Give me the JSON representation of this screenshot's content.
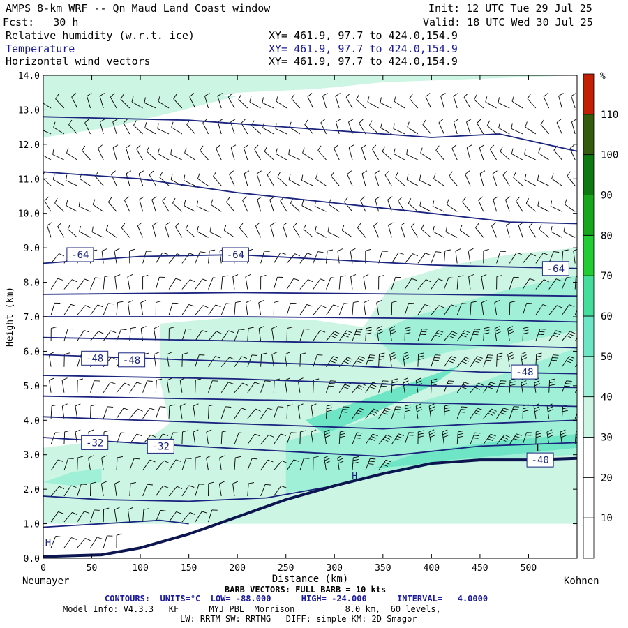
{
  "header": {
    "title": "AMPS 8-km WRF -- Qn Maud Land Coast window",
    "init": "Init: 12 UTC Tue 29 Jul 25",
    "fcst": "Fcst:   30 h",
    "valid": "Valid: 18 UTC Wed 30 Jul 25",
    "field1": "Relative humidity (w.r.t. ice)",
    "field2": "Temperature",
    "field3": "Horizontal wind vectors",
    "xy": "XY= 461.9, 97.7 to 424.0,154.9"
  },
  "footer": {
    "barb": "BARB VECTORS: FULL BARB = 10 kts",
    "contours": "CONTOURS:  UNITS=°C  LOW= -88.000      HIGH= -24.000      INTERVAL=   4.0000",
    "model1": "Model Info: V4.3.3   KF      MYJ PBL  Morrison          8.0 km,  60 levels,",
    "model2": "LW: RRTM SW: RRTMG   DIFF: simple KM: 2D Smagor"
  },
  "chart_data": {
    "type": "cross-section",
    "xlabel": "Distance (km)",
    "ylabel": "Height (km)",
    "xlim": [
      0,
      550
    ],
    "ylim": [
      0.0,
      14.0
    ],
    "x_ticks": [
      0,
      50,
      100,
      150,
      200,
      250,
      300,
      350,
      400,
      450,
      500
    ],
    "y_ticks": [
      "0.0",
      "1.0",
      "2.0",
      "3.0",
      "4.0",
      "5.0",
      "6.0",
      "7.0",
      "8.0",
      "9.0",
      "10.0",
      "11.0",
      "12.0",
      "13.0",
      "14.0"
    ],
    "left_endpoint": "Neumayer",
    "right_endpoint": "Kohnen",
    "colorbar": {
      "unit": "%",
      "labels": [
        "10",
        "20",
        "30",
        "40",
        "50",
        "60",
        "70",
        "80",
        "90",
        "100",
        "110"
      ],
      "colors": [
        "#ffffff",
        "#ffffff",
        "#ffffff",
        "#ccf5e3",
        "#9ff0d6",
        "#6ee6c6",
        "#44dd99",
        "#22cc33",
        "#17a61c",
        "#0c7a10",
        "#345c0c",
        "#c21f05"
      ]
    },
    "temperature_contour_labels": [
      {
        "text": "-64",
        "x": 38,
        "y": 8.8
      },
      {
        "text": "-64",
        "x": 198,
        "y": 8.8
      },
      {
        "text": "-64",
        "x": 528,
        "y": 8.4
      },
      {
        "text": "-48",
        "x": 53,
        "y": 5.8
      },
      {
        "text": "-48",
        "x": 91,
        "y": 5.75
      },
      {
        "text": "-48",
        "x": 496,
        "y": 5.4
      },
      {
        "text": "-32",
        "x": 53,
        "y": 3.35
      },
      {
        "text": "-32",
        "x": 121,
        "y": 3.25
      },
      {
        "text": "-40",
        "x": 512,
        "y": 2.85
      }
    ],
    "annotations": [
      "H",
      "H",
      "L"
    ],
    "surface_km": [
      [
        0,
        0.05
      ],
      [
        60,
        0.1
      ],
      [
        100,
        0.3
      ],
      [
        150,
        0.7
      ],
      [
        200,
        1.2
      ],
      [
        250,
        1.7
      ],
      [
        300,
        2.1
      ],
      [
        350,
        2.45
      ],
      [
        400,
        2.75
      ],
      [
        450,
        2.85
      ],
      [
        500,
        2.85
      ],
      [
        550,
        2.9
      ]
    ]
  }
}
